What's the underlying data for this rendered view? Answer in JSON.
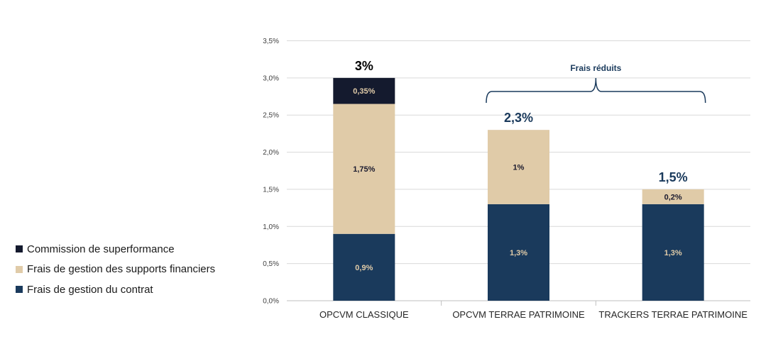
{
  "chart_data": {
    "type": "bar",
    "stacked": true,
    "categories": [
      "OPCVM CLASSIQUE",
      "OPCVM TERRAE PATRIMOINE",
      "TRACKERS TERRAE PATRIMOINE"
    ],
    "series": [
      {
        "name": "Frais de gestion du contrat",
        "color": "#1a3a5c",
        "label_color": "#e0cba8",
        "values": [
          0.9,
          1.3,
          1.3
        ],
        "labels": [
          "0,9%",
          "1,3%",
          "1,3%"
        ]
      },
      {
        "name": "Frais de gestion des supports financiers",
        "color": "#e0cba8",
        "label_color": "#1a1a2e",
        "values": [
          1.75,
          1.0,
          0.2
        ],
        "labels": [
          "1,75%",
          "1%",
          "0,2%"
        ]
      },
      {
        "name": "Commission de superformance",
        "color": "#141a2e",
        "label_color": "#e0cba8",
        "values": [
          0.35,
          0,
          0
        ],
        "labels": [
          "0,35%",
          "",
          ""
        ]
      }
    ],
    "totals": [
      "3%",
      "2,3%",
      "1,5%"
    ],
    "total_colors": [
      "#000000",
      "#1a3a5c",
      "#1a3a5c"
    ],
    "ylim": [
      0,
      3.5
    ],
    "yticks": [
      0,
      0.5,
      1.0,
      1.5,
      2.0,
      2.5,
      3.0,
      3.5
    ],
    "ytick_labels": [
      "0,0%",
      "0,5%",
      "1,0%",
      "1,5%",
      "2,0%",
      "2,5%",
      "3,0%",
      "3,5%"
    ],
    "grid": true,
    "legend_position": "left",
    "annotation": {
      "text": "Frais réduits",
      "spans_categories": [
        1,
        2
      ]
    }
  }
}
